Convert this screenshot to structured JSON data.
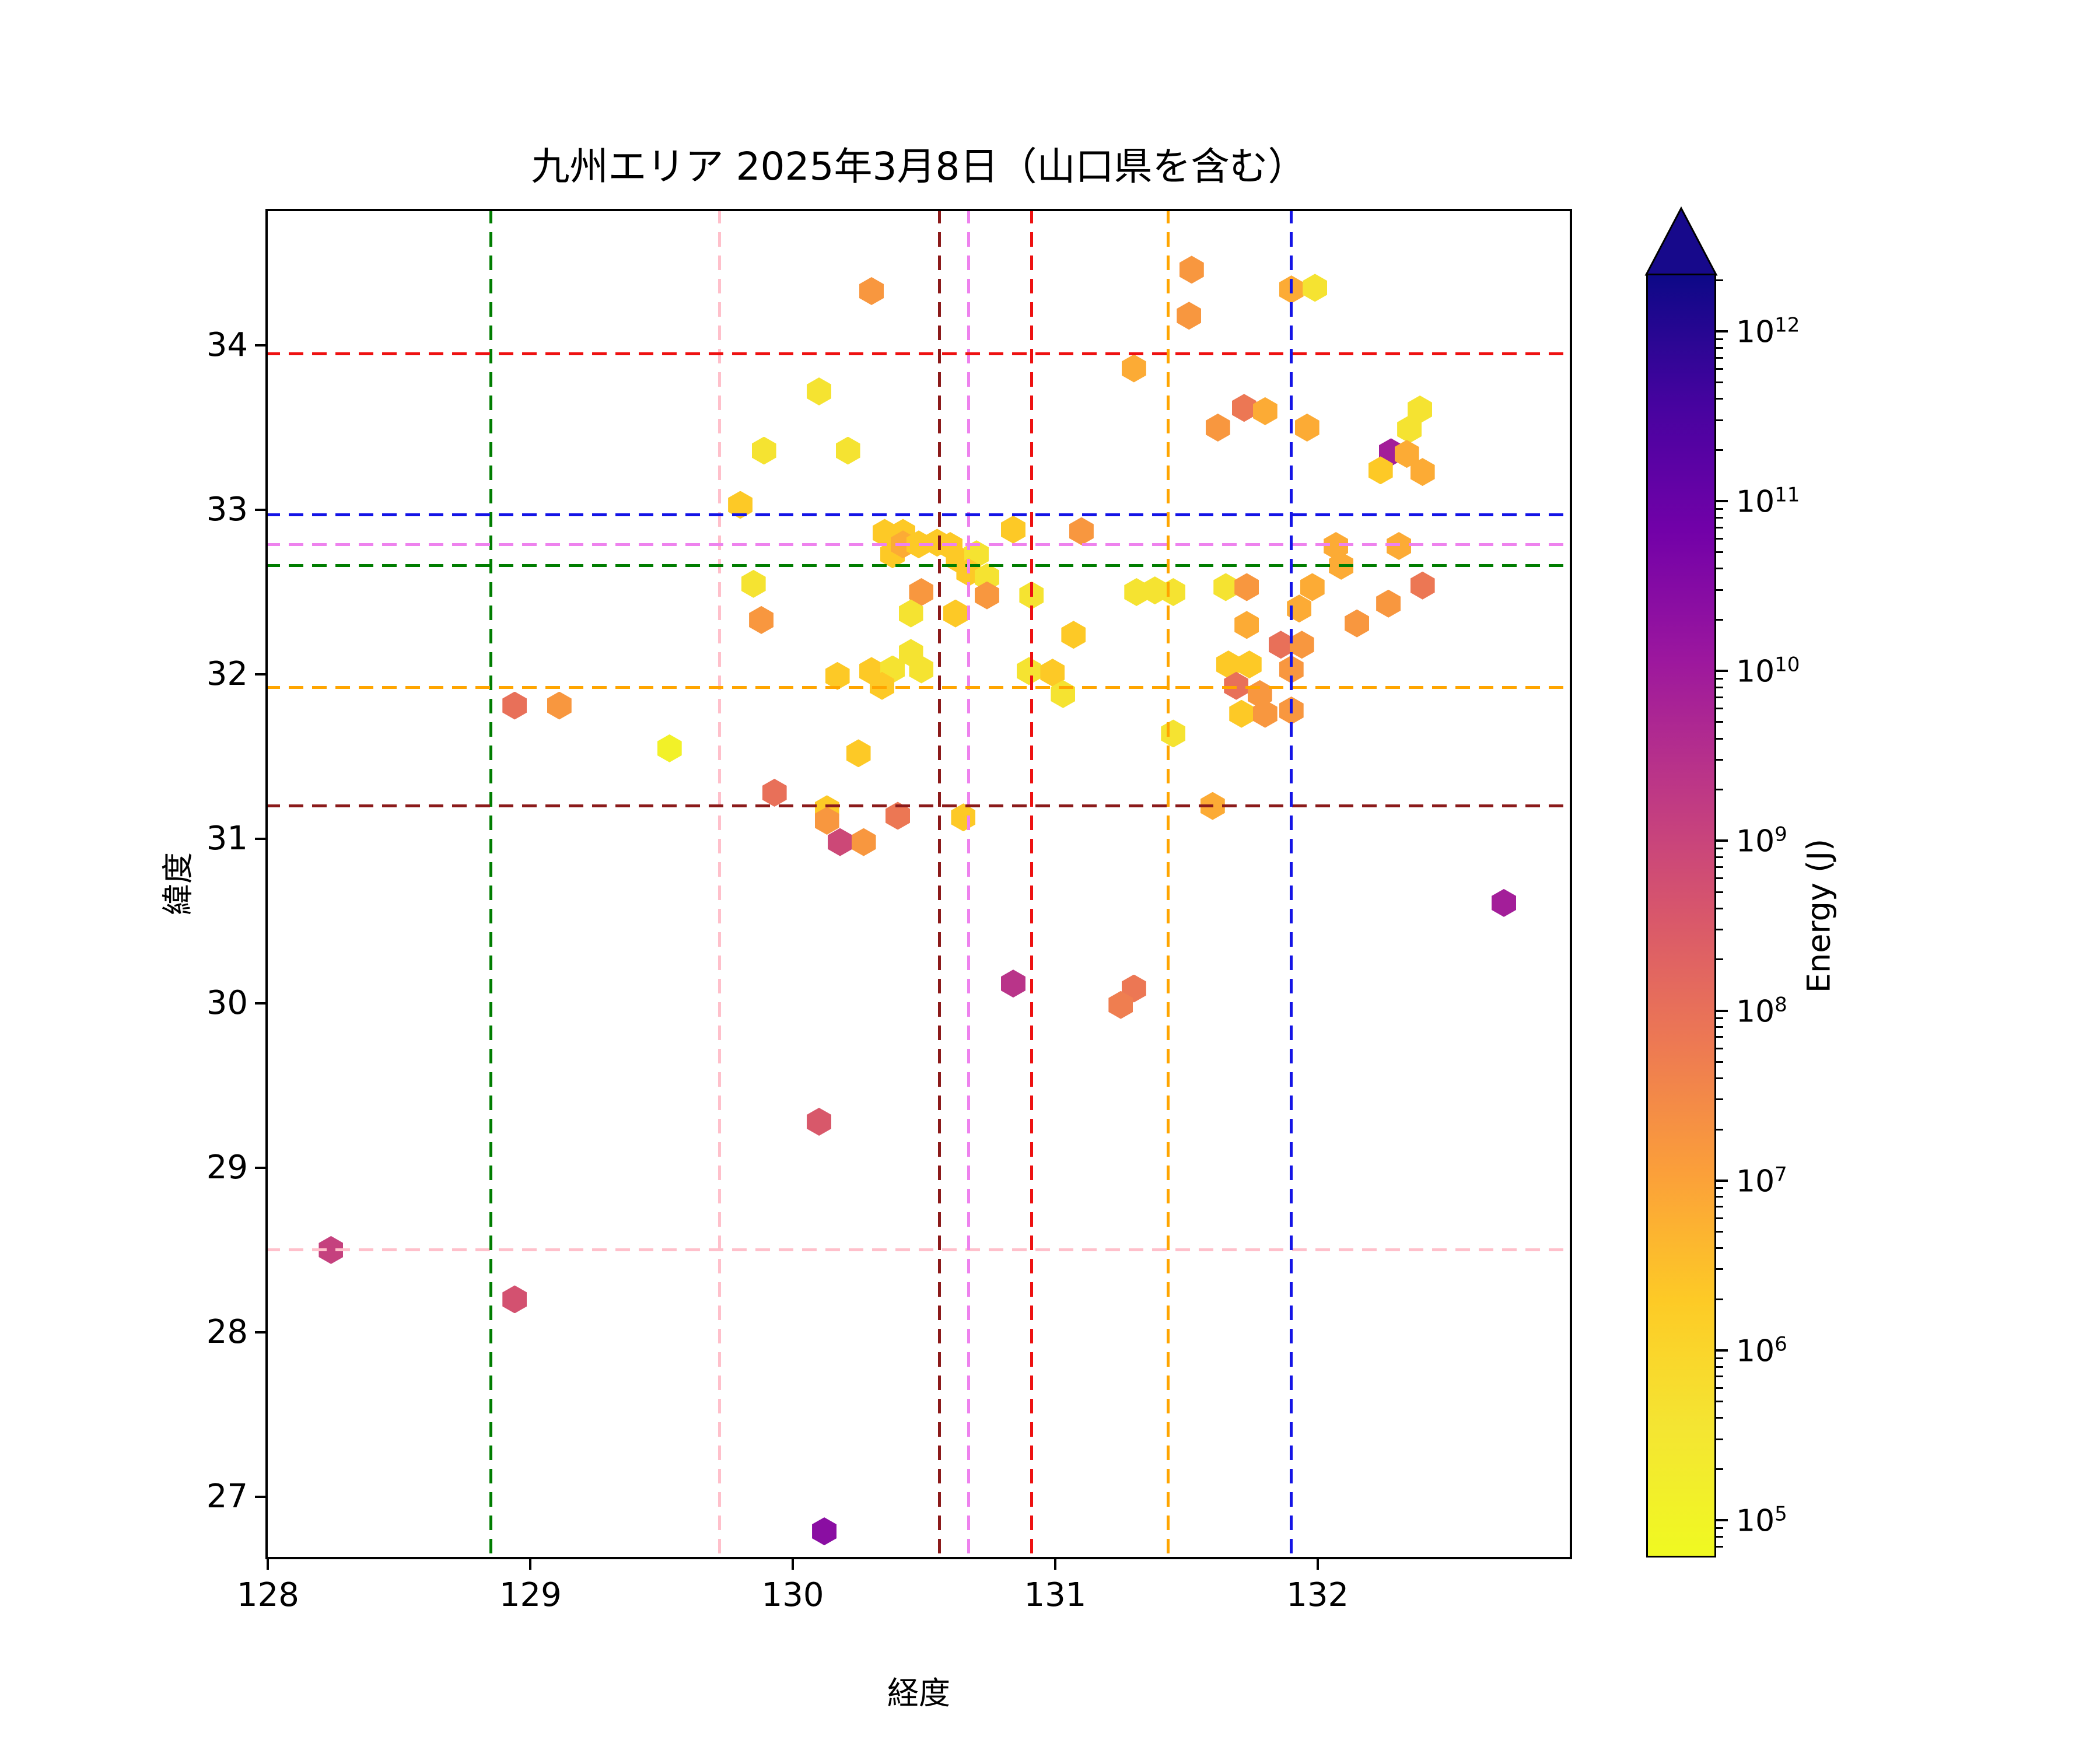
{
  "title": "九州エリア 2025年3月8日（山口県を含む）",
  "chart_data": {
    "type": "scatter",
    "title": "九州エリア 2025年3月8日（山口県を含む）",
    "xlabel": "経度",
    "ylabel": "緯度",
    "xlim": [
      127.99,
      132.97
    ],
    "ylim": [
      26.62,
      34.83
    ],
    "xticks": [
      128,
      129,
      130,
      131,
      132
    ],
    "yticks": [
      27,
      28,
      29,
      30,
      31,
      32,
      33,
      34
    ],
    "grid": false,
    "marker": "hexagon",
    "colorbar": {
      "label": "Energy (J)",
      "scale": "log",
      "colormap": "plasma_r",
      "extend": "max",
      "tick_exponents": [
        5,
        6,
        7,
        8,
        9,
        10,
        11,
        12
      ],
      "vmin_exponent": 4.78,
      "vmax_exponent": 12.34
    },
    "reference_lines": [
      {
        "name": "pink",
        "color": "#ffc0cb",
        "lon": 129.72,
        "lat": 28.5
      },
      {
        "name": "green",
        "color": "#007d00",
        "lon": 128.85,
        "lat": 32.66
      },
      {
        "name": "violet",
        "color": "#ee82ee",
        "lon": 130.67,
        "lat": 32.79
      },
      {
        "name": "darkred",
        "color": "#8b1a1a",
        "lon": 130.56,
        "lat": 31.2
      },
      {
        "name": "red",
        "color": "#ee1111",
        "lon": 130.91,
        "lat": 33.95
      },
      {
        "name": "orange",
        "color": "#ffa500",
        "lon": 131.43,
        "lat": 31.92
      },
      {
        "name": "blue",
        "color": "#1414e6",
        "lon": 131.9,
        "lat": 32.97
      }
    ],
    "points": [
      {
        "lon": 130.3,
        "lat": 34.33,
        "energy": 16000000.0
      },
      {
        "lon": 131.52,
        "lat": 34.46,
        "energy": 16000000.0
      },
      {
        "lon": 131.51,
        "lat": 34.18,
        "energy": 16000000.0
      },
      {
        "lon": 131.9,
        "lat": 34.34,
        "energy": 7000000.0
      },
      {
        "lon": 131.99,
        "lat": 34.35,
        "energy": 400000.0
      },
      {
        "lon": 131.3,
        "lat": 33.86,
        "energy": 7000000.0
      },
      {
        "lon": 130.1,
        "lat": 33.72,
        "energy": 400000.0
      },
      {
        "lon": 129.89,
        "lat": 33.36,
        "energy": 400000.0
      },
      {
        "lon": 130.21,
        "lat": 33.36,
        "energy": 400000.0
      },
      {
        "lon": 131.72,
        "lat": 33.62,
        "energy": 70000000.0
      },
      {
        "lon": 131.8,
        "lat": 33.6,
        "energy": 7000000.0
      },
      {
        "lon": 131.62,
        "lat": 33.5,
        "energy": 16000000.0
      },
      {
        "lon": 131.96,
        "lat": 33.5,
        "energy": 7000000.0
      },
      {
        "lon": 132.39,
        "lat": 33.61,
        "energy": 400000.0
      },
      {
        "lon": 132.35,
        "lat": 33.49,
        "energy": 400000.0
      },
      {
        "lon": 132.28,
        "lat": 33.35,
        "energy": 8000000000.0
      },
      {
        "lon": 132.34,
        "lat": 33.34,
        "energy": 7000000.0
      },
      {
        "lon": 132.24,
        "lat": 33.24,
        "energy": 2000000.0
      },
      {
        "lon": 132.4,
        "lat": 33.23,
        "energy": 7000000.0
      },
      {
        "lon": 129.8,
        "lat": 33.03,
        "energy": 2000000.0
      },
      {
        "lon": 130.35,
        "lat": 32.86,
        "energy": 2000000.0
      },
      {
        "lon": 130.42,
        "lat": 32.86,
        "energy": 2000000.0
      },
      {
        "lon": 130.38,
        "lat": 32.73,
        "energy": 2000000.0
      },
      {
        "lon": 130.84,
        "lat": 32.88,
        "energy": 2000000.0
      },
      {
        "lon": 131.1,
        "lat": 32.87,
        "energy": 16000000.0
      },
      {
        "lon": 130.42,
        "lat": 32.79,
        "energy": 7000000.0
      },
      {
        "lon": 130.48,
        "lat": 32.79,
        "energy": 2000000.0
      },
      {
        "lon": 130.55,
        "lat": 32.8,
        "energy": 2000000.0
      },
      {
        "lon": 130.6,
        "lat": 32.78,
        "energy": 2000000.0
      },
      {
        "lon": 130.63,
        "lat": 32.7,
        "energy": 2000000.0
      },
      {
        "lon": 130.7,
        "lat": 32.73,
        "energy": 400000.0
      },
      {
        "lon": 130.67,
        "lat": 32.62,
        "energy": 2000000.0
      },
      {
        "lon": 130.74,
        "lat": 32.59,
        "energy": 400000.0
      },
      {
        "lon": 129.85,
        "lat": 32.55,
        "energy": 400000.0
      },
      {
        "lon": 129.88,
        "lat": 32.33,
        "energy": 16000000.0
      },
      {
        "lon": 130.49,
        "lat": 32.5,
        "energy": 16000000.0
      },
      {
        "lon": 130.45,
        "lat": 32.37,
        "energy": 400000.0
      },
      {
        "lon": 130.62,
        "lat": 32.37,
        "energy": 2000000.0
      },
      {
        "lon": 130.74,
        "lat": 32.48,
        "energy": 16000000.0
      },
      {
        "lon": 130.91,
        "lat": 32.48,
        "energy": 400000.0
      },
      {
        "lon": 131.07,
        "lat": 32.24,
        "energy": 2000000.0
      },
      {
        "lon": 130.45,
        "lat": 32.13,
        "energy": 400000.0
      },
      {
        "lon": 130.9,
        "lat": 32.02,
        "energy": 400000.0
      },
      {
        "lon": 130.99,
        "lat": 32.01,
        "energy": 2000000.0
      },
      {
        "lon": 131.03,
        "lat": 31.88,
        "energy": 400000.0
      },
      {
        "lon": 131.31,
        "lat": 32.5,
        "energy": 400000.0
      },
      {
        "lon": 131.38,
        "lat": 32.51,
        "energy": 400000.0
      },
      {
        "lon": 131.45,
        "lat": 32.5,
        "energy": 400000.0
      },
      {
        "lon": 131.65,
        "lat": 32.53,
        "energy": 400000.0
      },
      {
        "lon": 131.73,
        "lat": 32.53,
        "energy": 16000000.0
      },
      {
        "lon": 131.98,
        "lat": 32.53,
        "energy": 7000000.0
      },
      {
        "lon": 131.93,
        "lat": 32.4,
        "energy": 7000000.0
      },
      {
        "lon": 132.07,
        "lat": 32.78,
        "energy": 7000000.0
      },
      {
        "lon": 132.09,
        "lat": 32.66,
        "energy": 7000000.0
      },
      {
        "lon": 132.31,
        "lat": 32.78,
        "energy": 7000000.0
      },
      {
        "lon": 132.4,
        "lat": 32.54,
        "energy": 70000000.0
      },
      {
        "lon": 132.27,
        "lat": 32.43,
        "energy": 16000000.0
      },
      {
        "lon": 132.15,
        "lat": 32.31,
        "energy": 16000000.0
      },
      {
        "lon": 131.73,
        "lat": 32.3,
        "energy": 7000000.0
      },
      {
        "lon": 131.86,
        "lat": 32.18,
        "energy": 100000000.0
      },
      {
        "lon": 131.94,
        "lat": 32.18,
        "energy": 16000000.0
      },
      {
        "lon": 131.66,
        "lat": 32.06,
        "energy": 2000000.0
      },
      {
        "lon": 131.74,
        "lat": 32.06,
        "energy": 2000000.0
      },
      {
        "lon": 131.9,
        "lat": 32.03,
        "energy": 16000000.0
      },
      {
        "lon": 131.69,
        "lat": 31.93,
        "energy": 100000000.0
      },
      {
        "lon": 131.78,
        "lat": 31.88,
        "energy": 16000000.0
      },
      {
        "lon": 131.71,
        "lat": 31.76,
        "energy": 2000000.0
      },
      {
        "lon": 131.8,
        "lat": 31.76,
        "energy": 16000000.0
      },
      {
        "lon": 131.9,
        "lat": 31.78,
        "energy": 16000000.0
      },
      {
        "lon": 131.6,
        "lat": 31.2,
        "energy": 7000000.0
      },
      {
        "lon": 128.94,
        "lat": 31.81,
        "energy": 100000000.0
      },
      {
        "lon": 129.11,
        "lat": 31.81,
        "energy": 16000000.0
      },
      {
        "lon": 129.53,
        "lat": 31.55,
        "energy": 120000.0
      },
      {
        "lon": 130.25,
        "lat": 31.52,
        "energy": 2000000.0
      },
      {
        "lon": 129.93,
        "lat": 31.28,
        "energy": 100000000.0
      },
      {
        "lon": 130.13,
        "lat": 31.18,
        "energy": 2000000.0
      },
      {
        "lon": 130.13,
        "lat": 31.11,
        "energy": 16000000.0
      },
      {
        "lon": 130.18,
        "lat": 30.98,
        "energy": 800000000.0
      },
      {
        "lon": 130.27,
        "lat": 30.98,
        "energy": 16000000.0
      },
      {
        "lon": 130.4,
        "lat": 31.14,
        "energy": 70000000.0
      },
      {
        "lon": 130.65,
        "lat": 31.13,
        "energy": 2000000.0
      },
      {
        "lon": 130.17,
        "lat": 31.99,
        "energy": 2000000.0
      },
      {
        "lon": 130.3,
        "lat": 32.02,
        "energy": 2000000.0
      },
      {
        "lon": 130.38,
        "lat": 32.03,
        "energy": 400000.0
      },
      {
        "lon": 130.49,
        "lat": 32.03,
        "energy": 400000.0
      },
      {
        "lon": 130.34,
        "lat": 31.93,
        "energy": 2000000.0
      },
      {
        "lon": 131.45,
        "lat": 31.64,
        "energy": 400000.0
      },
      {
        "lon": 130.84,
        "lat": 30.12,
        "energy": 2500000000.0
      },
      {
        "lon": 131.3,
        "lat": 30.09,
        "energy": 70000000.0
      },
      {
        "lon": 131.25,
        "lat": 29.99,
        "energy": 50000000.0
      },
      {
        "lon": 130.1,
        "lat": 29.28,
        "energy": 350000000.0
      },
      {
        "lon": 128.24,
        "lat": 28.5,
        "energy": 1200000000.0
      },
      {
        "lon": 128.94,
        "lat": 28.2,
        "energy": 500000000.0
      },
      {
        "lon": 130.12,
        "lat": 26.79,
        "energy": 25000000000.0
      },
      {
        "lon": 132.71,
        "lat": 30.61,
        "energy": 8000000000.0
      }
    ]
  }
}
